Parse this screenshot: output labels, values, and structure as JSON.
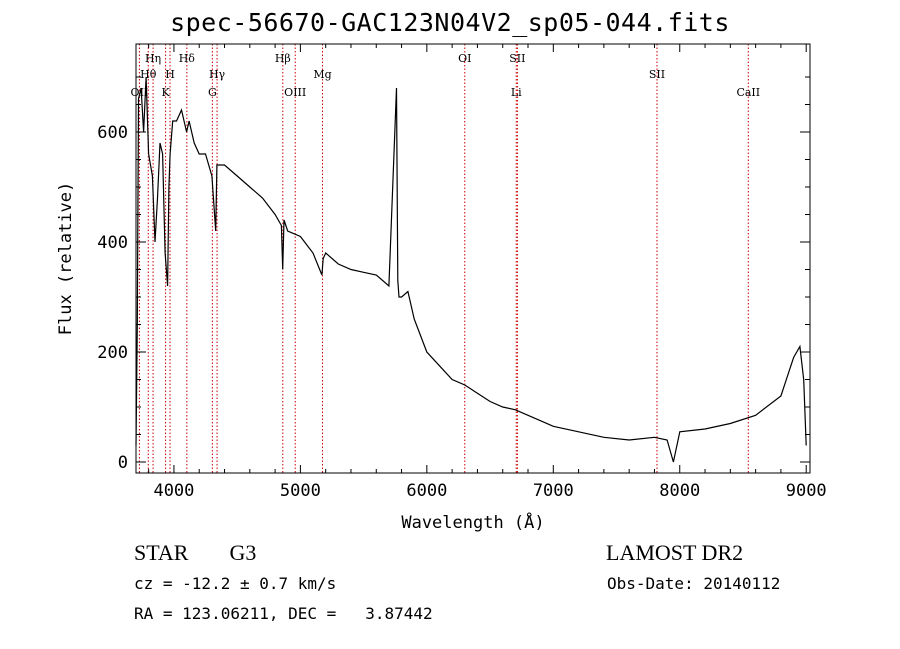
{
  "title": "spec-56670-GAC123N04V2_sp05-044.fits",
  "classification": {
    "class": "STAR",
    "subclass": "G3"
  },
  "survey": "LAMOST DR2",
  "redshift_text": "cz = -12.2 ± 0.7 km/s",
  "obs_date_text": "Obs-Date: 20140112",
  "coords_text": "RA = 123.06211, DEC =   3.87442",
  "chart_data": {
    "type": "line",
    "title": "spec-56670-GAC123N04V2_sp05-044.fits",
    "xlabel": "Wavelength (Å)",
    "ylabel": "Flux (relative)",
    "xlim": [
      3700,
      9030
    ],
    "ylim": [
      -20,
      760
    ],
    "xticks": [
      4000,
      5000,
      6000,
      7000,
      8000,
      9000
    ],
    "yticks": [
      0,
      200,
      400,
      600
    ],
    "grid": false,
    "line_color": "#000000",
    "marker_color": "#cc0000",
    "series": [
      {
        "x": [
          3700,
          3710,
          3720,
          3740,
          3760,
          3780,
          3800,
          3830,
          3850,
          3870,
          3890,
          3910,
          3930,
          3950,
          3960,
          3970,
          3990,
          4020,
          4060,
          4100,
          4120,
          4160,
          4200,
          4250,
          4300,
          4330,
          4340,
          4370,
          4400,
          4500,
          4600,
          4700,
          4800,
          4850,
          4860,
          4870,
          4900,
          5000,
          5100,
          5170,
          5180,
          5200,
          5300,
          5400,
          5500,
          5600,
          5700,
          5760,
          5770,
          5780,
          5800,
          5850,
          5900,
          5950,
          6000,
          6100,
          6200,
          6300,
          6400,
          6500,
          6600,
          6700,
          6800,
          6900,
          7000,
          7200,
          7400,
          7600,
          7800,
          7900,
          7950,
          8000,
          8200,
          8400,
          8600,
          8800,
          8900,
          8950,
          8980,
          9000
        ],
        "y": [
          30,
          250,
          660,
          680,
          600,
          700,
          560,
          520,
          400,
          480,
          580,
          560,
          380,
          320,
          500,
          560,
          620,
          620,
          640,
          600,
          620,
          580,
          560,
          560,
          520,
          420,
          540,
          540,
          540,
          520,
          500,
          480,
          450,
          430,
          350,
          440,
          420,
          410,
          380,
          340,
          370,
          380,
          360,
          350,
          345,
          340,
          320,
          680,
          330,
          300,
          300,
          310,
          260,
          230,
          200,
          175,
          150,
          140,
          125,
          110,
          100,
          95,
          85,
          75,
          65,
          55,
          45,
          40,
          45,
          40,
          0,
          55,
          60,
          70,
          85,
          120,
          190,
          210,
          150,
          30
        ]
      }
    ],
    "lines": [
      {
        "name": "OII",
        "x": 3727,
        "row": 3
      },
      {
        "name": "Hθ",
        "x": 3797,
        "row": 2
      },
      {
        "name": "Hη",
        "x": 3835,
        "row": 1
      },
      {
        "name": "K",
        "x": 3934,
        "row": 3
      },
      {
        "name": "H",
        "x": 3969,
        "row": 2
      },
      {
        "name": "Hδ",
        "x": 4102,
        "row": 1
      },
      {
        "name": "G",
        "x": 4304,
        "row": 3
      },
      {
        "name": "Hγ",
        "x": 4341,
        "row": 2
      },
      {
        "name": "Hβ",
        "x": 4861,
        "row": 1
      },
      {
        "name": "OIII",
        "x": 4959,
        "row": 3
      },
      {
        "name": "Mg",
        "x": 5175,
        "row": 2
      },
      {
        "name": "OI",
        "x": 6300,
        "row": 1
      },
      {
        "name": "SII",
        "x": 6716,
        "row": 1
      },
      {
        "name": "Li",
        "x": 6707,
        "row": 3
      },
      {
        "name": "SII",
        "x": 7820,
        "row": 2
      },
      {
        "name": "CaII",
        "x": 8542,
        "row": 3
      }
    ]
  }
}
